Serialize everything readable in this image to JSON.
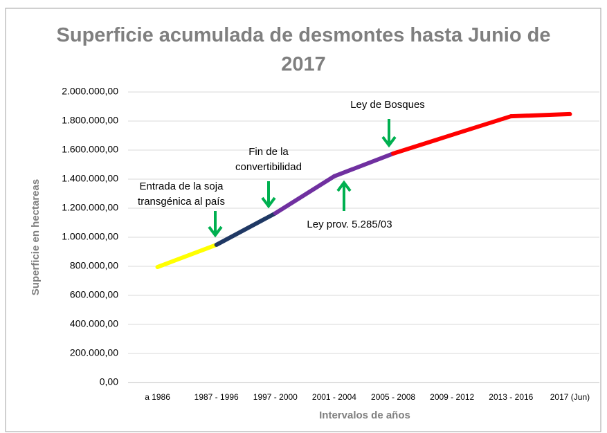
{
  "chart_data": {
    "type": "line",
    "title": "Superficie acumulada de desmontes hasta Junio de 2017",
    "x_label": "Intervalos de años",
    "y_label": "Superficie en hectareas",
    "categories": [
      "a 1986",
      "1987 - 1996",
      "1997 - 2000",
      "2001 - 2004",
      "2005 - 2008",
      "2009 - 2012",
      "2013 - 2016",
      "2017 (Jun)"
    ],
    "values": [
      795000,
      948000,
      1165000,
      1420000,
      1576000,
      1705000,
      1833000,
      1848000
    ],
    "segment_colors": [
      "#ffff00",
      "#1f3864",
      "#7030a0",
      "#7030a0",
      "#ff0000",
      "#ff0000",
      "#ff0000"
    ],
    "ylim": [
      0,
      2000000
    ],
    "yticks": [
      {
        "value": 0,
        "label": "0,00"
      },
      {
        "value": 200000,
        "label": "200.000,00"
      },
      {
        "value": 400000,
        "label": "400.000,00"
      },
      {
        "value": 600000,
        "label": "600.000,00"
      },
      {
        "value": 800000,
        "label": "800.000,00"
      },
      {
        "value": 1000000,
        "label": "1.000.000,00"
      },
      {
        "value": 1200000,
        "label": "1.200.000,00"
      },
      {
        "value": 1400000,
        "label": "1.400.000,00"
      },
      {
        "value": 1600000,
        "label": "1.600.000,00"
      },
      {
        "value": 1800000,
        "label": "1.800.000,00"
      },
      {
        "value": 2000000,
        "label": "2.000.000,00"
      }
    ],
    "grid": true,
    "annotations": [
      {
        "lines": [
          "Entrada de la soja",
          "transgénica al país"
        ]
      },
      {
        "lines": [
          "Fin de la",
          "convertibilidad"
        ]
      },
      {
        "lines": [
          "Ley prov. 5.285/03"
        ]
      },
      {
        "lines": [
          "Ley de Bosques"
        ]
      }
    ],
    "annotation_color": "#00b050"
  }
}
